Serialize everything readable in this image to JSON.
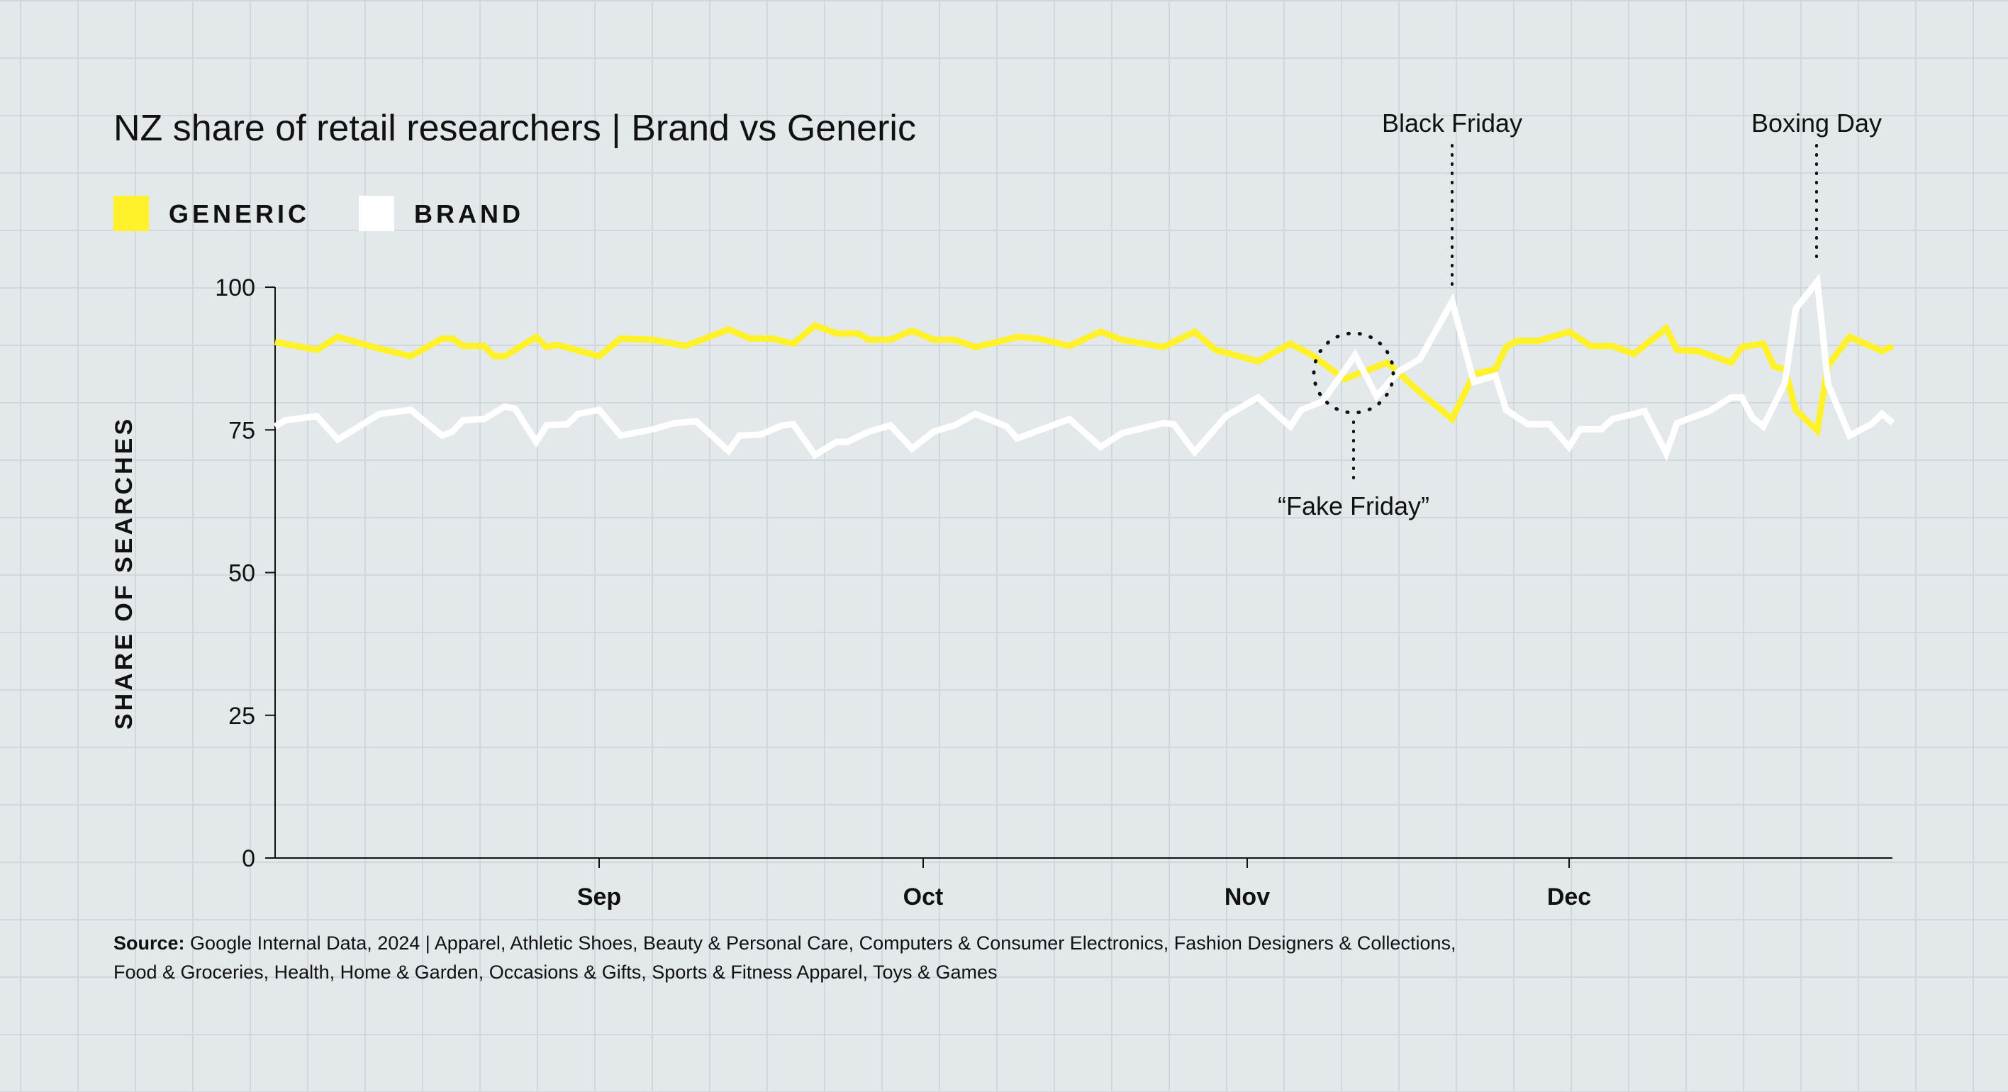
{
  "chart_data": {
    "type": "line",
    "title": "NZ share of retail researchers | Brand vs Generic",
    "ylabel": "SHARE OF SEARCHES",
    "xlabel": "",
    "ylim": [
      0,
      100
    ],
    "yticks": [
      "0",
      "25",
      "50",
      "75",
      "100"
    ],
    "xticks": [
      "Sep",
      "Oct",
      "Nov",
      "Dec"
    ],
    "xrange": [
      "2024-08-01",
      "2024-12-31"
    ],
    "grid": false,
    "legend_placement": "top-left",
    "legend": [
      "GENERIC",
      "BRAND"
    ],
    "colors": {
      "generic": "#fff22a",
      "brand": "#ffffff"
    },
    "series": [
      {
        "name": "GENERIC",
        "points": [
          [
            "2024-08-01",
            90.4
          ],
          [
            "2024-08-05",
            89
          ],
          [
            "2024-08-07",
            91.3
          ],
          [
            "2024-08-11",
            89.2
          ],
          [
            "2024-08-14",
            87.9
          ],
          [
            "2024-08-17",
            91
          ],
          [
            "2024-08-18",
            91
          ],
          [
            "2024-08-19",
            89.7
          ],
          [
            "2024-08-21",
            89.7
          ],
          [
            "2024-08-22",
            87.9
          ],
          [
            "2024-08-23",
            87.9
          ],
          [
            "2024-08-26",
            91.3
          ],
          [
            "2024-08-27",
            89.5
          ],
          [
            "2024-08-28",
            89.9
          ],
          [
            "2024-09-01",
            87.9
          ],
          [
            "2024-09-03",
            91
          ],
          [
            "2024-09-06",
            90.8
          ],
          [
            "2024-09-09",
            89.7
          ],
          [
            "2024-09-13",
            92.6
          ],
          [
            "2024-09-15",
            91
          ],
          [
            "2024-09-17",
            91
          ],
          [
            "2024-09-19",
            90.1
          ],
          [
            "2024-09-21",
            93.3
          ],
          [
            "2024-09-23",
            91.9
          ],
          [
            "2024-09-25",
            91.9
          ],
          [
            "2024-09-26",
            90.8
          ],
          [
            "2024-09-28",
            90.8
          ],
          [
            "2024-09-30",
            92.4
          ],
          [
            "2024-10-02",
            90.8
          ],
          [
            "2024-10-04",
            90.8
          ],
          [
            "2024-10-06",
            89.5
          ],
          [
            "2024-10-09",
            90.8
          ],
          [
            "2024-10-10",
            91.3
          ],
          [
            "2024-10-12",
            91
          ],
          [
            "2024-10-15",
            89.7
          ],
          [
            "2024-10-18",
            92.2
          ],
          [
            "2024-10-20",
            90.8
          ],
          [
            "2024-10-24",
            89.5
          ],
          [
            "2024-10-27",
            92.2
          ],
          [
            "2024-10-29",
            89
          ],
          [
            "2024-11-02",
            87
          ],
          [
            "2024-11-05",
            90.1
          ],
          [
            "2024-11-07",
            88.1
          ],
          [
            "2024-11-10",
            83.9
          ],
          [
            "2024-11-14",
            86.8
          ],
          [
            "2024-11-17",
            81.6
          ],
          [
            "2024-11-20",
            76.9
          ],
          [
            "2024-11-22",
            84.8
          ],
          [
            "2024-11-24",
            85.6
          ],
          [
            "2024-11-25",
            89.5
          ],
          [
            "2024-11-26",
            90.6
          ],
          [
            "2024-11-28",
            90.6
          ],
          [
            "2024-12-01",
            92.2
          ],
          [
            "2024-12-03",
            89.7
          ],
          [
            "2024-12-05",
            89.7
          ],
          [
            "2024-12-07",
            88.3
          ],
          [
            "2024-12-10",
            92.8
          ],
          [
            "2024-12-11",
            89
          ],
          [
            "2024-12-13",
            88.8
          ],
          [
            "2024-12-16",
            86.8
          ],
          [
            "2024-12-17",
            89.5
          ],
          [
            "2024-12-19",
            90.1
          ],
          [
            "2024-12-20",
            86.1
          ],
          [
            "2024-12-21",
            85.6
          ],
          [
            "2024-12-22",
            78.5
          ],
          [
            "2024-12-24",
            74.9
          ],
          [
            "2024-12-25",
            86.3
          ],
          [
            "2024-12-27",
            91.3
          ],
          [
            "2024-12-30",
            88.8
          ],
          [
            "2024-12-31",
            89.7
          ]
        ]
      },
      {
        "name": "BRAND",
        "points": [
          [
            "2024-08-01",
            75.6
          ],
          [
            "2024-08-02",
            76.7
          ],
          [
            "2024-08-05",
            77.4
          ],
          [
            "2024-08-07",
            73.3
          ],
          [
            "2024-08-11",
            77.8
          ],
          [
            "2024-08-14",
            78.5
          ],
          [
            "2024-08-17",
            74
          ],
          [
            "2024-08-18",
            74.7
          ],
          [
            "2024-08-19",
            76.7
          ],
          [
            "2024-08-21",
            76.9
          ],
          [
            "2024-08-23",
            79.1
          ],
          [
            "2024-08-24",
            78.7
          ],
          [
            "2024-08-26",
            72.9
          ],
          [
            "2024-08-27",
            75.8
          ],
          [
            "2024-08-29",
            76
          ],
          [
            "2024-08-30",
            77.8
          ],
          [
            "2024-09-01",
            78.5
          ],
          [
            "2024-09-03",
            74
          ],
          [
            "2024-09-06",
            75.1
          ],
          [
            "2024-09-08",
            76.2
          ],
          [
            "2024-09-10",
            76.5
          ],
          [
            "2024-09-13",
            71.3
          ],
          [
            "2024-09-14",
            74
          ],
          [
            "2024-09-16",
            74.2
          ],
          [
            "2024-09-18",
            75.8
          ],
          [
            "2024-09-19",
            76
          ],
          [
            "2024-09-21",
            70.6
          ],
          [
            "2024-09-23",
            72.9
          ],
          [
            "2024-09-24",
            72.9
          ],
          [
            "2024-09-26",
            74.7
          ],
          [
            "2024-09-28",
            75.8
          ],
          [
            "2024-09-30",
            71.7
          ],
          [
            "2024-10-02",
            74.7
          ],
          [
            "2024-10-04",
            75.8
          ],
          [
            "2024-10-06",
            77.8
          ],
          [
            "2024-10-09",
            75.6
          ],
          [
            "2024-10-10",
            73.5
          ],
          [
            "2024-10-15",
            76.9
          ],
          [
            "2024-10-18",
            72
          ],
          [
            "2024-10-20",
            74.4
          ],
          [
            "2024-10-24",
            76.2
          ],
          [
            "2024-10-25",
            76
          ],
          [
            "2024-10-27",
            71.1
          ],
          [
            "2024-10-30",
            77.4
          ],
          [
            "2024-11-02",
            80.7
          ],
          [
            "2024-11-05",
            75.6
          ],
          [
            "2024-11-06",
            78.5
          ],
          [
            "2024-11-08",
            80
          ],
          [
            "2024-11-11",
            88.1
          ],
          [
            "2024-11-13",
            80.9
          ],
          [
            "2024-11-15",
            85.2
          ],
          [
            "2024-11-17",
            87.4
          ],
          [
            "2024-11-20",
            97.5
          ],
          [
            "2024-11-22",
            83.4
          ],
          [
            "2024-11-24",
            84.5
          ],
          [
            "2024-11-25",
            78.5
          ],
          [
            "2024-11-27",
            76
          ],
          [
            "2024-11-29",
            76
          ],
          [
            "2024-12-01",
            72
          ],
          [
            "2024-12-02",
            75.1
          ],
          [
            "2024-12-04",
            75.1
          ],
          [
            "2024-12-05",
            76.9
          ],
          [
            "2024-12-07",
            77.8
          ],
          [
            "2024-12-08",
            78.3
          ],
          [
            "2024-12-10",
            70.9
          ],
          [
            "2024-12-11",
            76.2
          ],
          [
            "2024-12-14",
            78.3
          ],
          [
            "2024-12-16",
            80.7
          ],
          [
            "2024-12-17",
            80.7
          ],
          [
            "2024-12-18",
            77.1
          ],
          [
            "2024-12-19",
            75.6
          ],
          [
            "2024-12-21",
            83.2
          ],
          [
            "2024-12-22",
            96.2
          ],
          [
            "2024-12-24",
            101
          ],
          [
            "2024-12-25",
            83
          ],
          [
            "2024-12-27",
            74
          ],
          [
            "2024-12-29",
            76
          ],
          [
            "2024-12-30",
            77.8
          ],
          [
            "2024-12-31",
            76.2
          ]
        ]
      }
    ],
    "annotations": [
      "Black Friday",
      "Boxing Day",
      "“Fake Friday”"
    ],
    "source_label": "Source:",
    "source_text_1": "Google Internal Data, 2024 | Apparel, Athletic Shoes, Beauty & Personal Care, Computers & Consumer Electronics, Fashion Designers & Collections,",
    "source_text_2": "Food & Groceries, Health, Home & Garden, Occasions & Gifts, Sports & Fitness Apparel, Toys & Games"
  }
}
